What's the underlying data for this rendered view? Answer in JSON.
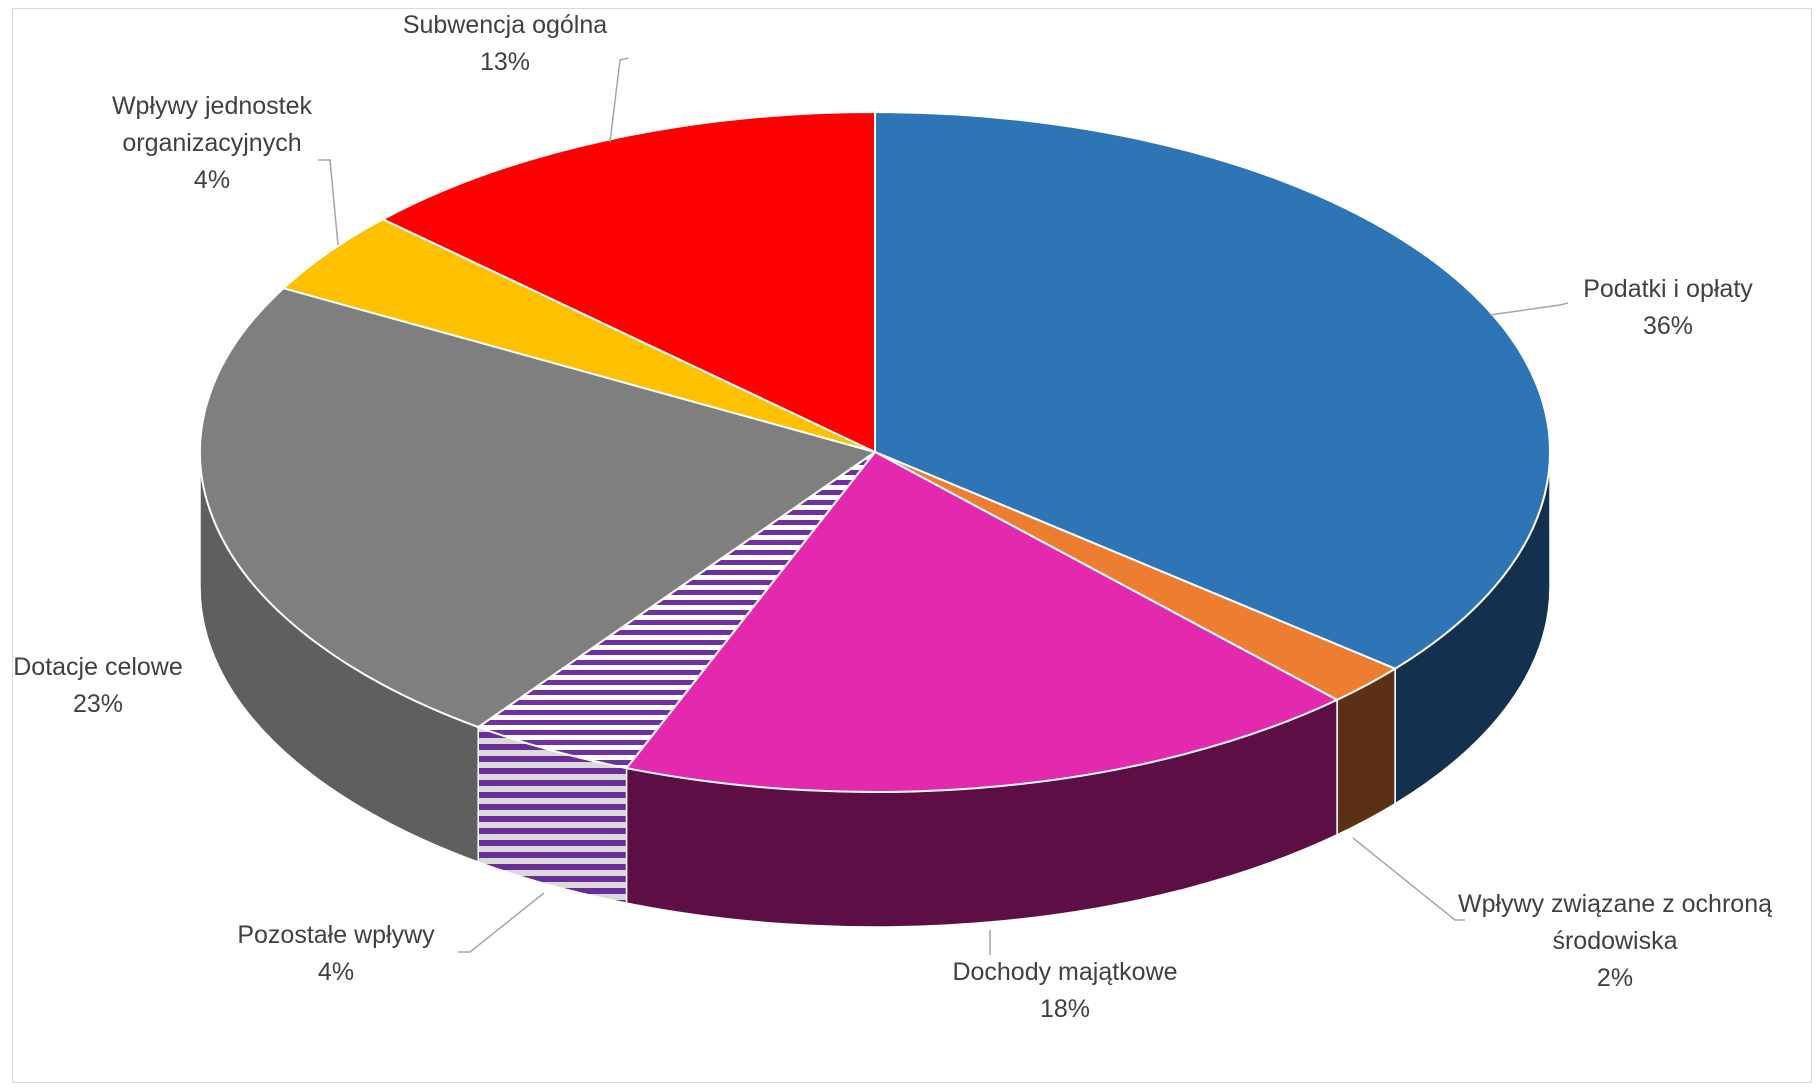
{
  "chart_data": {
    "type": "pie",
    "style": "3d",
    "title": "",
    "legend": "none",
    "categories": [
      "Podatki i opłaty",
      "Wpływy związane z ochroną środowiska",
      "Dochody majątkowe",
      "Pozostałe wpływy",
      "Dotacje celowe",
      "Wpływy jednostek organizacyjnych",
      "Subwencja ogólna"
    ],
    "values": [
      36,
      2,
      18,
      4,
      23,
      4,
      13
    ],
    "labels": [
      {
        "lines": [
          "Podatki i opłaty",
          "36%"
        ]
      },
      {
        "lines": [
          "Wpływy związane z ochroną",
          "środowiska",
          "2%"
        ]
      },
      {
        "lines": [
          "Dochody majątkowe",
          "18%"
        ]
      },
      {
        "lines": [
          "Pozostałe wpływy",
          "4%"
        ]
      },
      {
        "lines": [
          "Dotacje celowe",
          "23%"
        ]
      },
      {
        "lines": [
          "Wpływy jednostek",
          "organizacyjnych",
          "4%"
        ]
      },
      {
        "lines": [
          "Subwencja ogólna",
          "13%"
        ]
      }
    ],
    "colors": [
      "#2E75B6",
      "#ED7D31",
      "#E329AD",
      "#7030A0",
      "#7F7F7F",
      "#FFC000",
      "#FF0000"
    ],
    "side_colors": [
      "#13304F",
      "#5C3014",
      "#5C0E45",
      "#7030A0",
      "#5F5F5F",
      "#B38600",
      "#B30000"
    ],
    "patterns": [
      "none",
      "none",
      "none",
      "stripes",
      "none",
      "none",
      "none"
    ]
  }
}
